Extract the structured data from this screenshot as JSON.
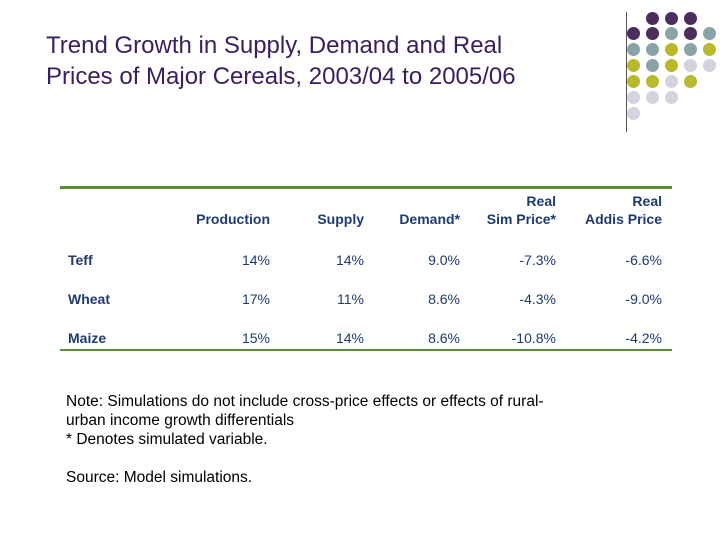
{
  "title": {
    "line1": "Trend Growth in Supply, Demand and Real",
    "line2": "Prices of Major Cereals, 2003/04 to 2005/06"
  },
  "table": {
    "headers": [
      {
        "line1": "",
        "line2": "Production"
      },
      {
        "line1": "",
        "line2": "Supply"
      },
      {
        "line1": "",
        "line2": "Demand*"
      },
      {
        "line1": "Real",
        "line2": "Sim Price*"
      },
      {
        "line1": "Real",
        "line2": "Addis Price"
      }
    ],
    "rows": [
      {
        "label": "Teff",
        "values": [
          "14%",
          "14%",
          "9.0%",
          "-7.3%",
          "-6.6%"
        ]
      },
      {
        "label": "Wheat",
        "values": [
          "17%",
          "11%",
          "8.6%",
          "-4.3%",
          "-9.0%"
        ]
      },
      {
        "label": "Maize",
        "values": [
          "15%",
          "14%",
          "8.6%",
          "-10.8%",
          "-4.2%"
        ]
      }
    ]
  },
  "notes": {
    "line1": "Note: Simulations do not include cross-price effects or effects of rural-",
    "line2": "urban income growth differentials",
    "line3": "* Denotes simulated variable.",
    "source": "Source: Model simulations."
  },
  "colors": {
    "title": "#3a1f5c",
    "table_text": "#1f3a72",
    "rule": "#5b8f35",
    "dot_purple": "#4b2d5e",
    "dot_teal": "#8aa3a8",
    "dot_olive": "#b9b92e",
    "dot_lavender": "#d4d2de"
  }
}
